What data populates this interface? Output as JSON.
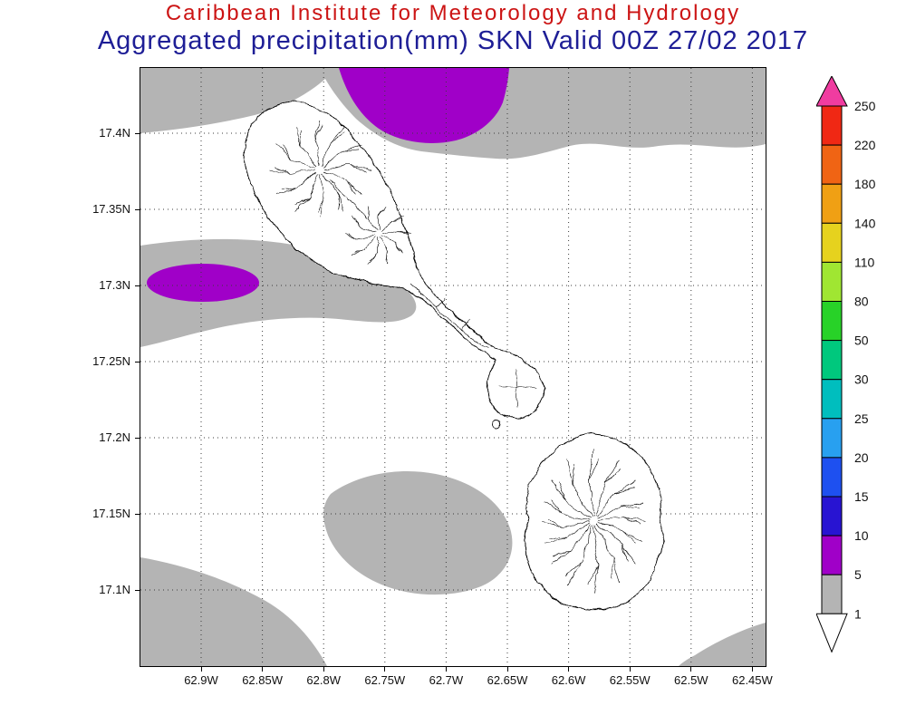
{
  "header": {
    "institution": "Caribbean Institute for Meteorology and Hydrology",
    "title": "Aggregated precipitation(mm) SKN Valid 00Z 27/02 2017"
  },
  "chart_data": {
    "type": "heatmap",
    "title": "Aggregated precipitation(mm) SKN Valid 00Z 27/02 2017",
    "source": "Caribbean Institute for Meteorology and Hydrology",
    "variable": "Aggregated precipitation (mm)",
    "region_label": "SKN",
    "valid_time": "00Z 27/02 2017",
    "x_axis": {
      "labels": [
        "62.9W",
        "62.85W",
        "62.8W",
        "62.75W",
        "62.7W",
        "62.65W",
        "62.6W",
        "62.55W",
        "62.5W",
        "62.45W"
      ],
      "direction": "longitude west"
    },
    "y_axis": {
      "labels": [
        "17.4N",
        "17.35N",
        "17.3N",
        "17.25N",
        "17.2N",
        "17.15N",
        "17.1N"
      ],
      "direction": "latitude north"
    },
    "grid": "dotted",
    "legend_position": "right",
    "colorbar_levels": [
      1,
      5,
      10,
      15,
      20,
      25,
      30,
      50,
      80,
      110,
      140,
      180,
      220,
      250
    ],
    "colorbar_segments": [
      {
        "range": "<1",
        "color": "#ffffff"
      },
      {
        "range": "1-5",
        "color": "#b4b4b4"
      },
      {
        "range": "5-10",
        "color": "#a000c8"
      },
      {
        "range": "10-15",
        "color": "#2814d2"
      },
      {
        "range": "15-20",
        "color": "#1e50f0"
      },
      {
        "range": "20-25",
        "color": "#28a0f0"
      },
      {
        "range": "25-30",
        "color": "#00bebe"
      },
      {
        "range": "30-50",
        "color": "#00c87d"
      },
      {
        "range": "50-80",
        "color": "#28d228"
      },
      {
        "range": "80-110",
        "color": "#a0e632"
      },
      {
        "range": "110-140",
        "color": "#e6d21e"
      },
      {
        "range": "140-180",
        "color": "#f0a014"
      },
      {
        "range": "180-220",
        "color": "#f06414"
      },
      {
        "range": "220-250",
        "color": "#f02814"
      },
      {
        "range": ">250",
        "color": "#f03ca0"
      }
    ],
    "colors": {
      "shade_1_5": "#b4b4b4",
      "shade_5_10": "#a000c8",
      "land": "#ffffff",
      "coastline": "#000000",
      "title_institution": "#cc1414",
      "title_main": "#1e1e96"
    },
    "shaded_regions": [
      {
        "range_mm": "1-5",
        "shade": "gray",
        "where": "band along entire northern edge of domain"
      },
      {
        "range_mm": "5-10",
        "shade": "purple",
        "where": "blob on northern edge, ~62.78W-62.62W, north of 17.42N"
      },
      {
        "range_mm": "1-5",
        "shade": "gray",
        "where": "band from western edge near 17.28N-17.32N extending east toward St. Kitts"
      },
      {
        "range_mm": "5-10",
        "shade": "purple",
        "where": "small ellipse near 62.9W, 17.3N"
      },
      {
        "range_mm": "1-5",
        "shade": "gray",
        "where": "southwest corner of domain"
      },
      {
        "range_mm": "1-5",
        "shade": "gray",
        "where": "oval near 62.75W, 17.15N"
      },
      {
        "range_mm": "1-5",
        "shade": "gray",
        "where": "southeast corner of domain"
      }
    ],
    "map_features": [
      "St. Kitts island outline with interior stream network",
      "Nevis island outline with interior stream network"
    ]
  }
}
